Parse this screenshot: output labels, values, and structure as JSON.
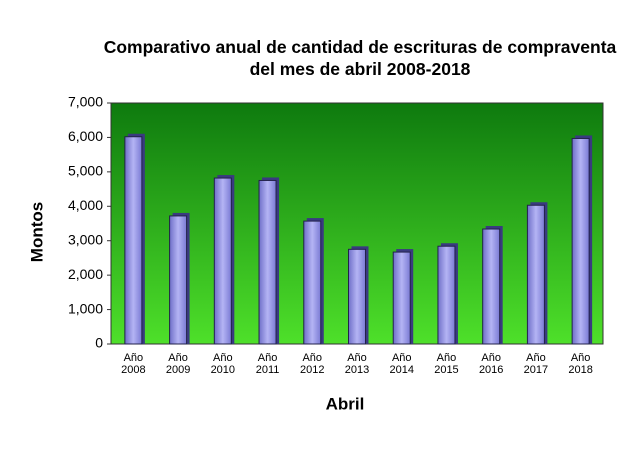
{
  "chart_data": {
    "type": "bar",
    "title": "Comparativo anual de cantidad de escrituras de compraventa del mes de abril 2008-2018",
    "categories": [
      "Año 2008",
      "Año 2009",
      "Año 2010",
      "Año 2011",
      "Año 2012",
      "Año 2013",
      "Año 2014",
      "Año 2015",
      "Año 2016",
      "Año 2017",
      "Año 2018"
    ],
    "values": [
      6020,
      3720,
      4820,
      4750,
      3570,
      2750,
      2670,
      2840,
      3340,
      4030,
      5970
    ],
    "color": "#8f8fe6",
    "x_label": "Abril",
    "y_label": "Montos",
    "ylim": [
      0,
      7000
    ],
    "yticks": [
      0,
      {
        "value": 1000,
        "label": "1,000"
      },
      {
        "value": 2000,
        "label": "2,000"
      },
      {
        "value": 3000,
        "label": "3,000"
      },
      {
        "value": 4000,
        "label": "4,000"
      },
      {
        "value": 5000,
        "label": "5,000"
      },
      {
        "value": 6000,
        "label": "6,000"
      },
      {
        "value": 7000,
        "label": "7,000"
      }
    ]
  }
}
